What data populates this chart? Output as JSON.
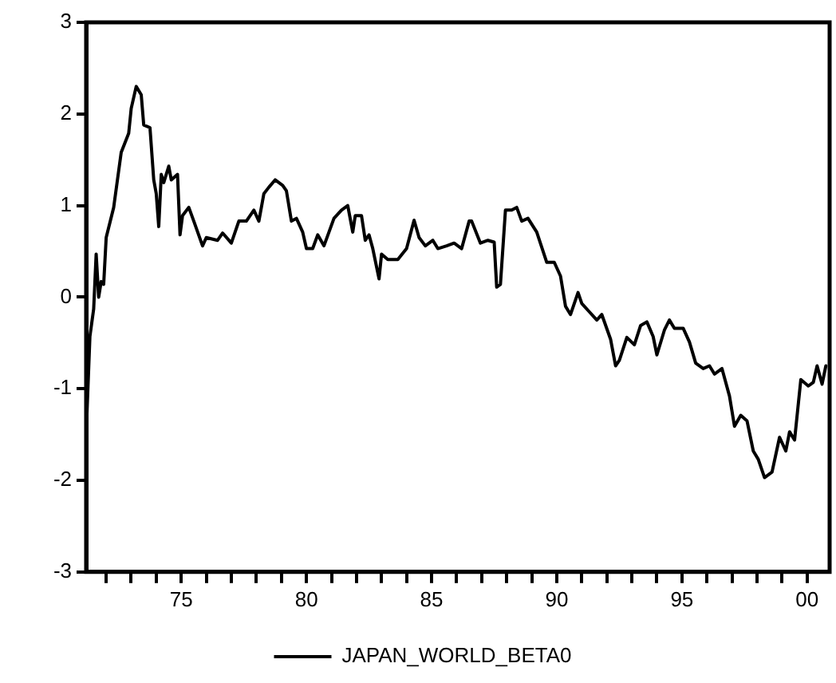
{
  "chart_data": {
    "type": "line",
    "x": [
      1971.2,
      1971.35,
      1971.5,
      1971.6,
      1971.7,
      1971.8,
      1971.9,
      1972.0,
      1972.3,
      1972.6,
      1972.9,
      1973.0,
      1973.2,
      1973.4,
      1973.5,
      1973.75,
      1973.9,
      1974.0,
      1974.1,
      1974.2,
      1974.3,
      1974.5,
      1974.6,
      1974.85,
      1974.95,
      1975.05,
      1975.3,
      1975.5,
      1975.85,
      1976.0,
      1976.45,
      1976.65,
      1977.0,
      1977.3,
      1977.6,
      1977.9,
      1978.1,
      1978.3,
      1978.5,
      1978.75,
      1979.05,
      1979.2,
      1979.4,
      1979.6,
      1979.85,
      1980.0,
      1980.25,
      1980.45,
      1980.7,
      1980.9,
      1981.1,
      1981.4,
      1981.65,
      1981.85,
      1981.95,
      1982.2,
      1982.35,
      1982.5,
      1982.65,
      1982.9,
      1983.0,
      1983.25,
      1983.65,
      1984.0,
      1984.3,
      1984.5,
      1984.75,
      1985.05,
      1985.25,
      1985.6,
      1985.9,
      1986.2,
      1986.5,
      1986.6,
      1986.95,
      1987.25,
      1987.5,
      1987.6,
      1987.75,
      1987.95,
      1988.2,
      1988.4,
      1988.6,
      1988.85,
      1989.2,
      1989.6,
      1989.9,
      1990.15,
      1990.35,
      1990.55,
      1990.85,
      1991.0,
      1991.3,
      1991.6,
      1991.8,
      1992.15,
      1992.35,
      1992.5,
      1992.8,
      1993.1,
      1993.35,
      1993.6,
      1993.85,
      1994.0,
      1994.3,
      1994.5,
      1994.7,
      1995.05,
      1995.3,
      1995.55,
      1995.85,
      1996.1,
      1996.3,
      1996.6,
      1996.9,
      1997.1,
      1997.35,
      1997.6,
      1997.85,
      1998.05,
      1998.3,
      1998.6,
      1998.9,
      1999.15,
      1999.3,
      1999.5,
      1999.75,
      2000.05,
      2000.25,
      2000.4,
      2000.6,
      2000.75
    ],
    "series": [
      {
        "name": "JAPAN_WORLD_BETA0",
        "color": "#000000",
        "values": [
          -1.5,
          -0.43,
          -0.13,
          0.47,
          0.0,
          0.17,
          0.14,
          0.65,
          0.98,
          1.58,
          1.79,
          2.06,
          2.3,
          2.21,
          1.88,
          1.85,
          1.28,
          1.13,
          0.77,
          1.34,
          1.25,
          1.43,
          1.28,
          1.34,
          0.68,
          0.89,
          0.98,
          0.83,
          0.56,
          0.65,
          0.62,
          0.7,
          0.59,
          0.83,
          0.83,
          0.95,
          0.83,
          1.13,
          1.2,
          1.28,
          1.22,
          1.16,
          0.83,
          0.86,
          0.71,
          0.53,
          0.53,
          0.68,
          0.56,
          0.71,
          0.86,
          0.95,
          1.0,
          0.71,
          0.89,
          0.89,
          0.62,
          0.68,
          0.53,
          0.2,
          0.47,
          0.41,
          0.41,
          0.53,
          0.84,
          0.65,
          0.56,
          0.62,
          0.53,
          0.56,
          0.59,
          0.53,
          0.83,
          0.83,
          0.59,
          0.62,
          0.6,
          0.11,
          0.14,
          0.95,
          0.95,
          0.98,
          0.83,
          0.86,
          0.71,
          0.38,
          0.38,
          0.23,
          -0.1,
          -0.19,
          0.05,
          -0.07,
          -0.16,
          -0.25,
          -0.19,
          -0.46,
          -0.75,
          -0.69,
          -0.44,
          -0.52,
          -0.31,
          -0.27,
          -0.43,
          -0.63,
          -0.36,
          -0.25,
          -0.34,
          -0.34,
          -0.49,
          -0.72,
          -0.78,
          -0.75,
          -0.84,
          -0.78,
          -1.08,
          -1.41,
          -1.29,
          -1.35,
          -1.68,
          -1.77,
          -1.97,
          -1.91,
          -1.53,
          -1.68,
          -1.47,
          -1.56,
          -0.9,
          -0.97,
          -0.93,
          -0.75,
          -0.95,
          -0.75
        ]
      }
    ],
    "xlim": [
      1971.2,
      2000.9
    ],
    "xticks": [
      {
        "value": 1972,
        "label": null
      },
      {
        "value": 1973,
        "label": null
      },
      {
        "value": 1974,
        "label": null
      },
      {
        "value": 1975,
        "label": "75"
      },
      {
        "value": 1976,
        "label": null
      },
      {
        "value": 1977,
        "label": null
      },
      {
        "value": 1978,
        "label": null
      },
      {
        "value": 1979,
        "label": null
      },
      {
        "value": 1980,
        "label": "80"
      },
      {
        "value": 1981,
        "label": null
      },
      {
        "value": 1982,
        "label": null
      },
      {
        "value": 1983,
        "label": null
      },
      {
        "value": 1984,
        "label": null
      },
      {
        "value": 1985,
        "label": "85"
      },
      {
        "value": 1986,
        "label": null
      },
      {
        "value": 1987,
        "label": null
      },
      {
        "value": 1988,
        "label": null
      },
      {
        "value": 1989,
        "label": null
      },
      {
        "value": 1990,
        "label": "90"
      },
      {
        "value": 1991,
        "label": null
      },
      {
        "value": 1992,
        "label": null
      },
      {
        "value": 1993,
        "label": null
      },
      {
        "value": 1994,
        "label": null
      },
      {
        "value": 1995,
        "label": "95"
      },
      {
        "value": 1996,
        "label": null
      },
      {
        "value": 1997,
        "label": null
      },
      {
        "value": 1998,
        "label": null
      },
      {
        "value": 1999,
        "label": null
      },
      {
        "value": 2000,
        "label": "00"
      }
    ],
    "ylim": [
      -3,
      3
    ],
    "yticks": [
      -3,
      -2,
      -1,
      0,
      1,
      2,
      3
    ],
    "grid": false,
    "legend": "bottom",
    "marker": "none",
    "line_style": "solid"
  }
}
